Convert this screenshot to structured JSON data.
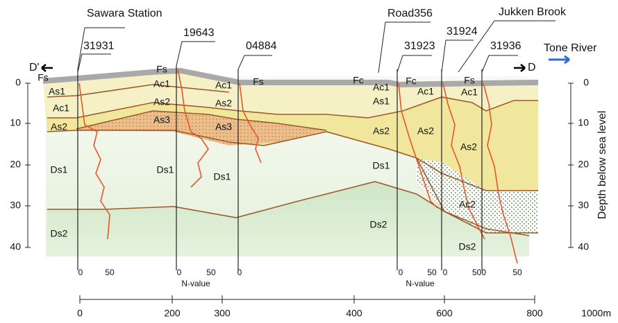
{
  "stations": [
    "Sawara Station",
    "Road356",
    "Jukken Brook"
  ],
  "boreholes": [
    "31931",
    "19643",
    "04884",
    "31923",
    "31924",
    "31936"
  ],
  "directions": {
    "left": "D'",
    "right": "D",
    "river": "Tone River"
  },
  "layers": [
    "Fs",
    "As1",
    "Ac1",
    "As2",
    "Fs",
    "Ac1",
    "As2",
    "As3",
    "Ds1",
    "Ac1",
    "Fs",
    "As2",
    "As3",
    "Ds1",
    "Ds1",
    "Ds2",
    "Fc",
    "Ac1",
    "As1",
    "As2",
    "Ds1",
    "Fc",
    "Ac1",
    "As2",
    "Fs",
    "Ac1",
    "As2",
    "Ac2",
    "Ds2",
    "Ds2"
  ],
  "depth_axis": {
    "label": "Depth below sea level",
    "ticks": [
      0,
      10,
      20,
      30,
      40
    ]
  },
  "n_value": {
    "label": "N-value",
    "ticks": [
      "0",
      "50",
      "0",
      "50",
      "0",
      "0",
      "50",
      "0",
      "500",
      "50"
    ]
  },
  "distance_axis": {
    "ticks": [
      "0",
      "200",
      "300",
      "400",
      "600",
      "800",
      "1000m"
    ]
  }
}
